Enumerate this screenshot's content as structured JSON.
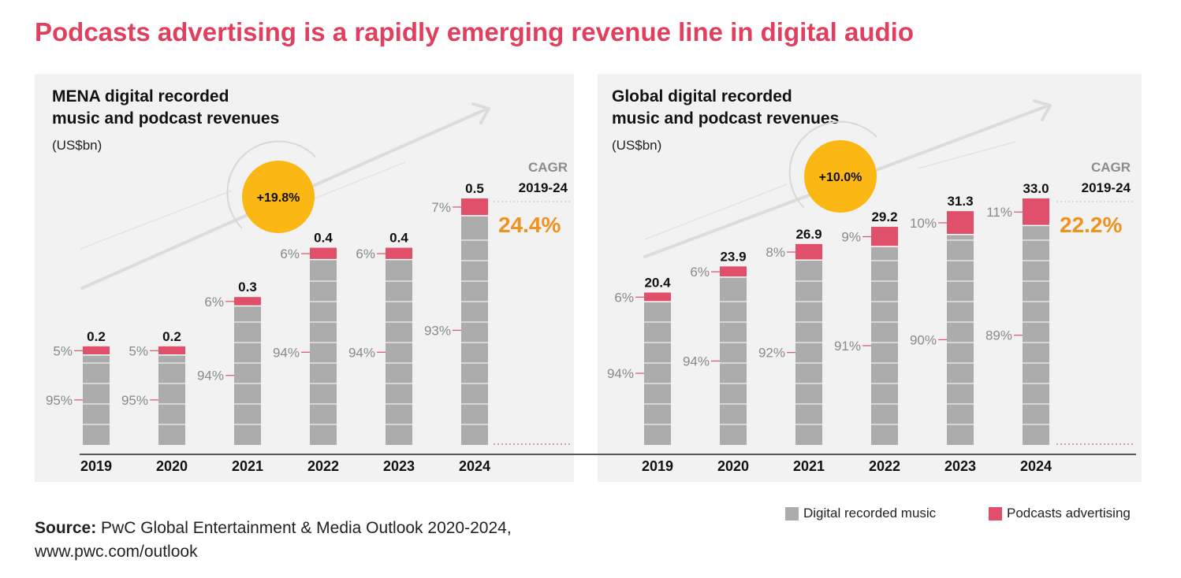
{
  "title": "Podcasts advertising is a rapidly emerging revenue line in digital audio",
  "colors": {
    "title": "#e0405e",
    "music": "#acacac",
    "podcast": "#e0506a",
    "growth_bubble": "#fbb714",
    "cagr_value": "#f0921e",
    "cagr_label": "#8c8c8c"
  },
  "source": {
    "label": "Source:",
    "text": "PwC Global Entertainment & Media Outlook 2020-2024,",
    "url": "www.pwc.com/outlook"
  },
  "legend": {
    "music": "Digital recorded music",
    "podcast": "Podcasts advertising"
  },
  "chart_data": [
    {
      "type": "bar",
      "stacked": true,
      "title": "MENA digital recorded music and podcast revenues",
      "title_lines": [
        "MENA digital recorded",
        "music and podcast revenues"
      ],
      "unit": "(US$bn)",
      "categories": [
        "2019",
        "2020",
        "2021",
        "2022",
        "2023",
        "2024"
      ],
      "totals": [
        0.2,
        0.2,
        0.3,
        0.4,
        0.4,
        0.5
      ],
      "total_labels": [
        "0.2",
        "0.2",
        "0.3",
        "0.4",
        "0.4",
        "0.5"
      ],
      "series": [
        {
          "name": "Digital recorded music",
          "share_labels": [
            "95%",
            "95%",
            "94%",
            "94%",
            "94%",
            "93%"
          ]
        },
        {
          "name": "Podcasts advertising",
          "share_labels": [
            "5%",
            "5%",
            "6%",
            "6%",
            "6%",
            "7%"
          ]
        }
      ],
      "growth": "+19.8%",
      "cagr_label": "CAGR",
      "cagr_period": "2019-24",
      "cagr_value": "24.4%"
    },
    {
      "type": "bar",
      "stacked": true,
      "title": "Global digital recorded music and podcast revenues",
      "title_lines": [
        "Global digital recorded",
        "music and podcast revenues"
      ],
      "unit": "(US$bn)",
      "categories": [
        "2019",
        "2020",
        "2021",
        "2022",
        "2023",
        "2024"
      ],
      "totals": [
        20.4,
        23.9,
        26.9,
        29.2,
        31.3,
        33.0
      ],
      "total_labels": [
        "20.4",
        "23.9",
        "26.9",
        "29.2",
        "31.3",
        "33.0"
      ],
      "series": [
        {
          "name": "Digital recorded music",
          "share_labels": [
            "94%",
            "94%",
            "92%",
            "91%",
            "90%",
            "89%"
          ]
        },
        {
          "name": "Podcasts advertising",
          "share_labels": [
            "6%",
            "6%",
            "8%",
            "9%",
            "10%",
            "11%"
          ]
        }
      ],
      "growth": "+10.0%",
      "cagr_label": "CAGR",
      "cagr_period": "2019-24",
      "cagr_value": "22.2%"
    }
  ]
}
